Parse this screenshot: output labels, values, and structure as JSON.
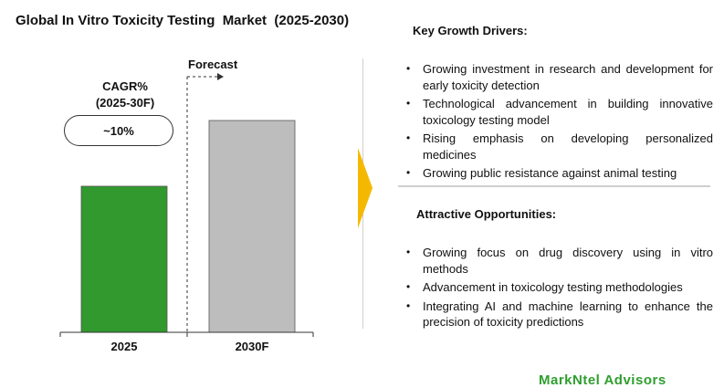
{
  "chart_data": {
    "type": "bar",
    "title": "Global In Vitro Toxicity Testing  Market  (2025-2030)",
    "categories": [
      "2025",
      "2030F"
    ],
    "values": [
      1.0,
      1.45
    ],
    "ylim": [
      0,
      1.75
    ],
    "bar_colors": [
      "#31992e",
      "#bdbdbd"
    ],
    "forecast_label": "Forecast",
    "cagr_label": "CAGR%\n(2025-30F)",
    "cagr_value": "~10%",
    "grid": false
  },
  "drivers": {
    "title": "Key Growth Drivers:",
    "items": [
      "Growing investment in research and development for early toxicity detection",
      "Technological advancement in building innovative toxicology testing model",
      "Rising emphasis on developing personalized medicines",
      "Growing public resistance against animal testing"
    ]
  },
  "opportunities": {
    "title": "Attractive Opportunities:",
    "items": [
      "Growing focus on drug discovery using in vitro methods",
      "Advancement in toxicology testing methodologies",
      "Integrating AI and machine learning to enhance the precision of toxicity predictions"
    ]
  },
  "accent_color": "#f5b800",
  "logo_text": "MarkNtel Advisors"
}
